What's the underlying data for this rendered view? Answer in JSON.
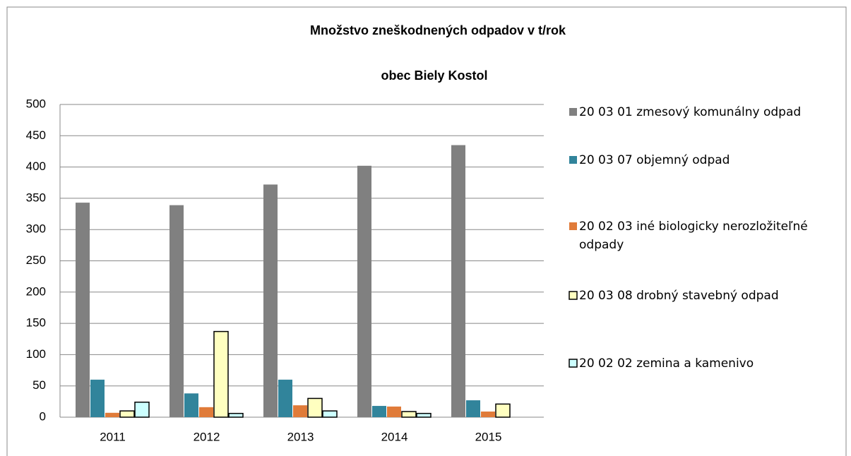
{
  "chart_data": {
    "type": "bar",
    "title": "Množstvo zneškodnených odpadov  v t/rok",
    "subtitle": "obec  Biely Kostol",
    "categories": [
      "2011",
      "2012",
      "2013",
      "2014",
      "2015"
    ],
    "series": [
      {
        "name": "20 03 01 zmesový komunálny odpad",
        "color": "#808080",
        "values": [
          343,
          339,
          372,
          402,
          435
        ]
      },
      {
        "name": "20 03 07 objemný odpad",
        "color": "#31849b",
        "values": [
          60,
          38,
          60,
          18,
          27
        ]
      },
      {
        "name": "20 02 03 iné biologicky nerozložiteľné odpady",
        "color": "#e07b39",
        "values": [
          7,
          16,
          19,
          17,
          9
        ]
      },
      {
        "name": "20 03 08 drobný stavebný odpad",
        "color": "#ffffc0",
        "values": [
          10,
          137,
          30,
          9,
          21
        ]
      },
      {
        "name": "20 02 02 zemina a kamenivo",
        "color": "#ccffff",
        "values": [
          24,
          6,
          10,
          6,
          0
        ]
      }
    ],
    "ylim": [
      0,
      500
    ],
    "yticks": [
      0,
      50,
      100,
      150,
      200,
      250,
      300,
      350,
      400,
      450,
      500
    ],
    "grid": true,
    "legend": "right"
  }
}
